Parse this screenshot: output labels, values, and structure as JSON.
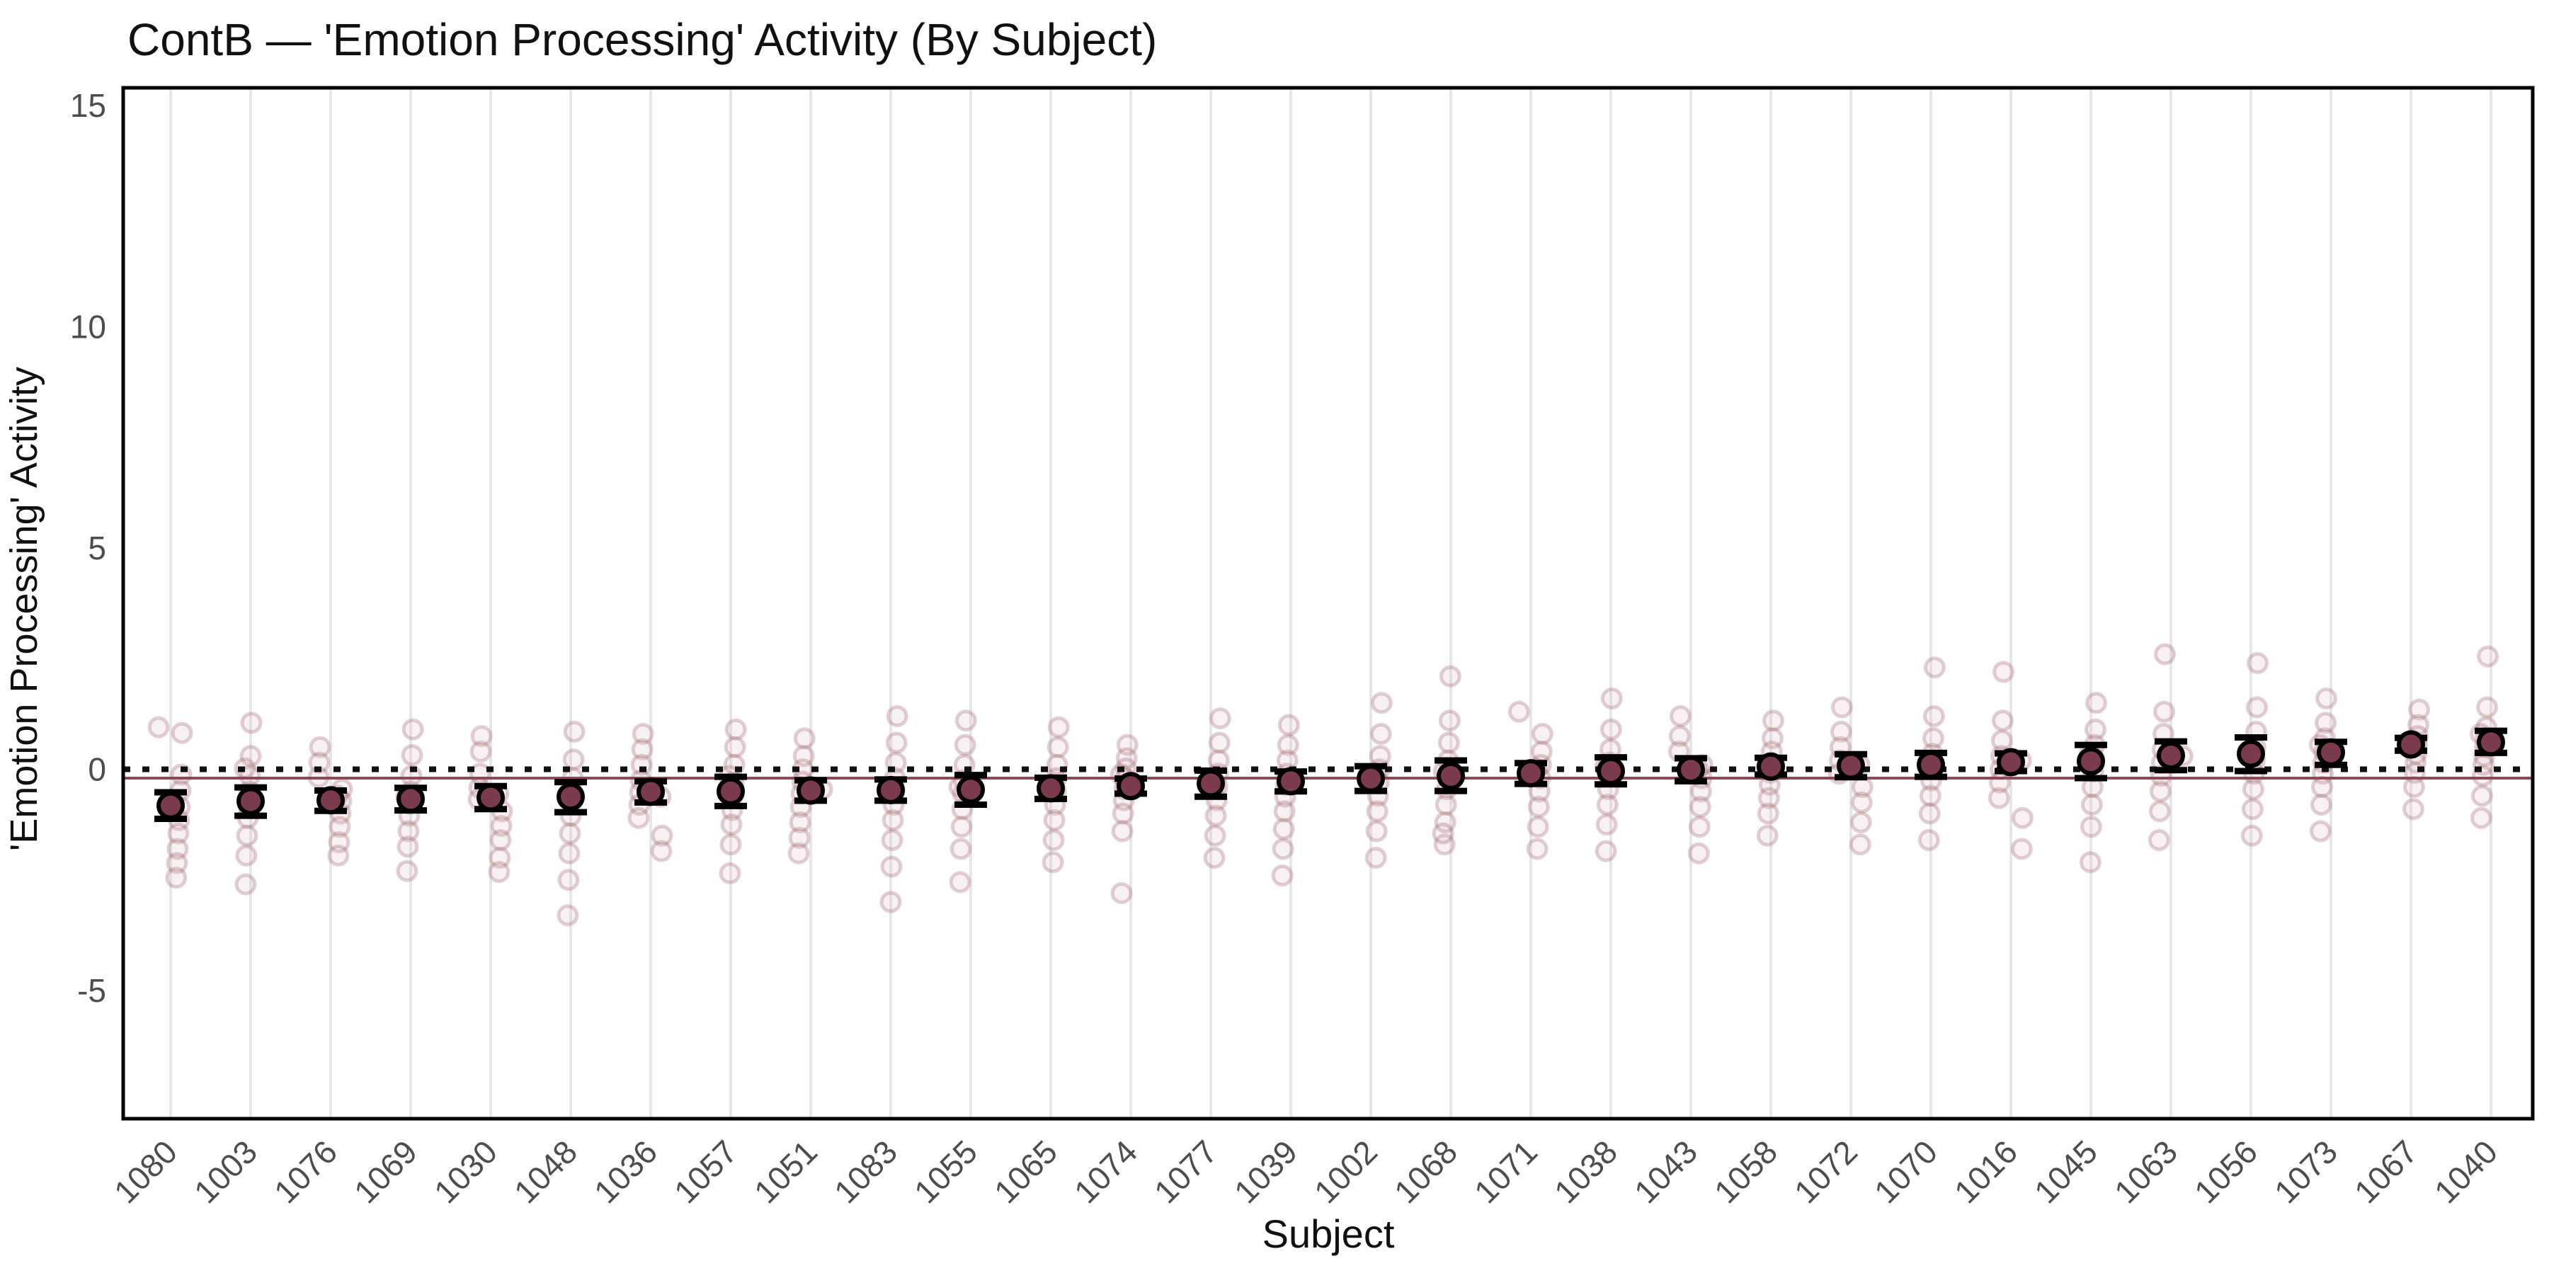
{
  "chart_data": {
    "type": "scatter",
    "title": "ContB — 'Emotion Processing' Activity (By Subject)",
    "xlabel": "Subject",
    "ylabel": "'Emotion Processing' Activity",
    "ylim": [
      -7.9,
      15.4
    ],
    "yticks": [
      -5,
      0,
      5,
      10,
      15
    ],
    "grid": "vertical-only",
    "legend": "none",
    "reference_lines": {
      "dotted_zero": 0,
      "solid_group_mean": -0.2
    },
    "subjects": [
      {
        "id": "1080",
        "mean": -0.82,
        "ci": [
          -1.12,
          -0.52
        ],
        "points": [
          0.95,
          0.82,
          -0.12,
          -0.48,
          -0.85,
          -1.15,
          -1.45,
          -1.8,
          -2.12,
          -2.45
        ]
      },
      {
        "id": "1003",
        "mean": -0.72,
        "ci": [
          -1.05,
          -0.41
        ],
        "points": [
          1.05,
          0.3,
          -0.15,
          -0.5,
          -0.85,
          -1.1,
          -1.5,
          -1.95,
          -2.6,
          0.02
        ]
      },
      {
        "id": "1076",
        "mean": -0.7,
        "ci": [
          -0.94,
          -0.48
        ],
        "points": [
          0.5,
          0.15,
          -0.18,
          -0.45,
          -0.72,
          -1.0,
          -1.3,
          -1.65,
          -1.95,
          -0.6
        ]
      },
      {
        "id": "1069",
        "mean": -0.67,
        "ci": [
          -0.93,
          -0.42
        ],
        "points": [
          0.9,
          0.32,
          -0.15,
          -0.5,
          -0.78,
          -1.05,
          -1.4,
          -1.75,
          -2.3,
          -0.62
        ]
      },
      {
        "id": "1030",
        "mean": -0.64,
        "ci": [
          -0.9,
          -0.38
        ],
        "points": [
          0.75,
          0.4,
          -0.1,
          -0.42,
          -0.68,
          -0.95,
          -1.28,
          -1.6,
          -2.0,
          -2.32,
          -0.55
        ]
      },
      {
        "id": "1048",
        "mean": -0.62,
        "ci": [
          -0.97,
          -0.29
        ],
        "points": [
          0.85,
          0.22,
          -0.2,
          -0.5,
          -0.75,
          -1.05,
          -1.45,
          -1.9,
          -2.5,
          -3.3
        ]
      },
      {
        "id": "1036",
        "mean": -0.51,
        "ci": [
          -0.75,
          -0.27
        ],
        "points": [
          0.8,
          0.45,
          0.1,
          -0.25,
          -0.52,
          -0.8,
          -1.1,
          -1.5,
          -1.85,
          -0.62
        ]
      },
      {
        "id": "1057",
        "mean": -0.5,
        "ci": [
          -0.83,
          -0.17
        ],
        "points": [
          0.9,
          0.5,
          0.1,
          -0.3,
          -0.6,
          -0.92,
          -1.25,
          -1.7,
          -2.35,
          -0.15
        ]
      },
      {
        "id": "1051",
        "mean": -0.48,
        "ci": [
          -0.71,
          -0.25
        ],
        "points": [
          0.7,
          0.3,
          0.0,
          -0.28,
          -0.55,
          -0.85,
          -1.2,
          -1.55,
          -1.9,
          -0.45
        ]
      },
      {
        "id": "1083",
        "mean": -0.47,
        "ci": [
          -0.71,
          -0.23
        ],
        "points": [
          1.2,
          0.6,
          0.15,
          -0.2,
          -0.5,
          -0.8,
          -1.15,
          -1.6,
          -2.2,
          -3.0
        ]
      },
      {
        "id": "1055",
        "mean": -0.46,
        "ci": [
          -0.8,
          -0.13
        ],
        "points": [
          1.1,
          0.55,
          0.1,
          -0.25,
          -0.55,
          -0.9,
          -1.3,
          -1.8,
          -2.55,
          -0.4
        ]
      },
      {
        "id": "1065",
        "mean": -0.43,
        "ci": [
          -0.67,
          -0.19
        ],
        "points": [
          0.95,
          0.5,
          0.1,
          -0.2,
          -0.5,
          -0.8,
          -1.15,
          -1.6,
          -2.1,
          -0.35
        ]
      },
      {
        "id": "1074",
        "mean": -0.38,
        "ci": [
          -0.55,
          -0.21
        ],
        "points": [
          0.55,
          0.25,
          0.02,
          -0.22,
          -0.45,
          -0.7,
          -1.0,
          -1.4,
          -2.8,
          -0.12
        ]
      },
      {
        "id": "1077",
        "mean": -0.32,
        "ci": [
          -0.62,
          -0.03
        ],
        "points": [
          1.15,
          0.6,
          0.2,
          -0.1,
          -0.4,
          -0.7,
          -1.05,
          -1.5,
          -2.0,
          -0.25
        ]
      },
      {
        "id": "1039",
        "mean": -0.27,
        "ci": [
          -0.5,
          -0.05
        ],
        "points": [
          1.0,
          0.55,
          0.2,
          -0.1,
          -0.35,
          -0.62,
          -0.95,
          -1.35,
          -1.8,
          -2.4
        ]
      },
      {
        "id": "1002",
        "mean": -0.21,
        "ci": [
          -0.49,
          0.07
        ],
        "points": [
          1.5,
          0.8,
          0.3,
          0.0,
          -0.3,
          -0.6,
          -0.95,
          -1.4,
          -2.0,
          -0.15
        ]
      },
      {
        "id": "1068",
        "mean": -0.15,
        "ci": [
          -0.49,
          0.2
        ],
        "points": [
          2.1,
          1.1,
          0.6,
          0.2,
          -0.15,
          -0.45,
          -0.8,
          -1.2,
          -1.7,
          -0.05,
          -1.45
        ]
      },
      {
        "id": "1071",
        "mean": -0.09,
        "ci": [
          -0.33,
          0.14
        ],
        "points": [
          1.3,
          0.8,
          0.4,
          0.1,
          -0.2,
          -0.5,
          -0.85,
          -1.3,
          -1.8,
          0.0
        ]
      },
      {
        "id": "1038",
        "mean": -0.04,
        "ci": [
          -0.34,
          0.27
        ],
        "points": [
          1.6,
          0.9,
          0.45,
          0.15,
          -0.15,
          -0.45,
          -0.8,
          -1.25,
          -1.85,
          0.05
        ]
      },
      {
        "id": "1043",
        "mean": -0.01,
        "ci": [
          -0.27,
          0.25
        ],
        "points": [
          1.2,
          0.75,
          0.4,
          0.1,
          -0.2,
          -0.5,
          -0.85,
          -1.3,
          -1.9,
          0.0
        ]
      },
      {
        "id": "1058",
        "mean": 0.06,
        "ci": [
          -0.12,
          0.26
        ],
        "points": [
          1.1,
          0.7,
          0.4,
          0.15,
          -0.08,
          -0.35,
          -0.65,
          -1.0,
          -1.5,
          0.05
        ]
      },
      {
        "id": "1072",
        "mean": 0.08,
        "ci": [
          -0.18,
          0.34
        ],
        "points": [
          1.4,
          0.85,
          0.5,
          0.2,
          -0.1,
          -0.4,
          -0.75,
          -1.2,
          -1.7,
          0.1
        ]
      },
      {
        "id": "1070",
        "mean": 0.1,
        "ci": [
          -0.17,
          0.37
        ],
        "points": [
          2.3,
          1.2,
          0.7,
          0.35,
          0.05,
          -0.25,
          -0.6,
          -1.0,
          -1.6,
          0.15
        ]
      },
      {
        "id": "1016",
        "mean": 0.16,
        "ci": [
          -0.04,
          0.36
        ],
        "points": [
          2.2,
          1.1,
          0.65,
          0.3,
          0.0,
          -0.3,
          -0.65,
          -1.1,
          -1.8,
          0.2
        ]
      },
      {
        "id": "1045",
        "mean": 0.18,
        "ci": [
          -0.2,
          0.55
        ],
        "points": [
          1.5,
          0.9,
          0.55,
          0.25,
          -0.05,
          -0.4,
          -0.8,
          -1.3,
          -2.1,
          0.35
        ]
      },
      {
        "id": "1063",
        "mean": 0.31,
        "ci": [
          -0.02,
          0.63
        ],
        "points": [
          2.6,
          1.3,
          0.8,
          0.45,
          0.15,
          -0.15,
          -0.5,
          -0.95,
          -1.6,
          0.3
        ]
      },
      {
        "id": "1056",
        "mean": 0.35,
        "ci": [
          -0.04,
          0.72
        ],
        "points": [
          2.4,
          1.4,
          0.85,
          0.5,
          0.2,
          -0.1,
          -0.45,
          -0.9,
          -1.5,
          0.35
        ]
      },
      {
        "id": "1073",
        "mean": 0.38,
        "ci": [
          0.1,
          0.62
        ],
        "points": [
          1.6,
          1.05,
          0.7,
          0.4,
          0.15,
          -0.1,
          -0.4,
          -0.8,
          -1.4,
          0.55
        ]
      },
      {
        "id": "1067",
        "mean": 0.56,
        "ci": [
          0.42,
          0.71
        ],
        "points": [
          1.35,
          1.0,
          0.75,
          0.55,
          0.35,
          0.15,
          -0.08,
          -0.4,
          -0.9,
          0.65
        ]
      },
      {
        "id": "1040",
        "mean": 0.61,
        "ci": [
          0.37,
          0.87
        ],
        "points": [
          2.55,
          1.4,
          0.95,
          0.7,
          0.5,
          0.3,
          0.1,
          -0.15,
          -0.6,
          -1.1,
          0.8
        ]
      }
    ]
  },
  "colors": {
    "mean_fill": "#7a3b4c",
    "mean_stroke": "#000000",
    "error_bar": "#000000",
    "jitter_stroke": "#9c6472",
    "jitter_fill": "#d6b2ba",
    "ref_solid": "#8a4a57",
    "ref_dotted": "#111111",
    "grid": "#e7e7e7",
    "axis_text": "#4d4d4d",
    "title_text": "#111111",
    "panel_border": "#000000",
    "panel_bg": "#ffffff"
  }
}
